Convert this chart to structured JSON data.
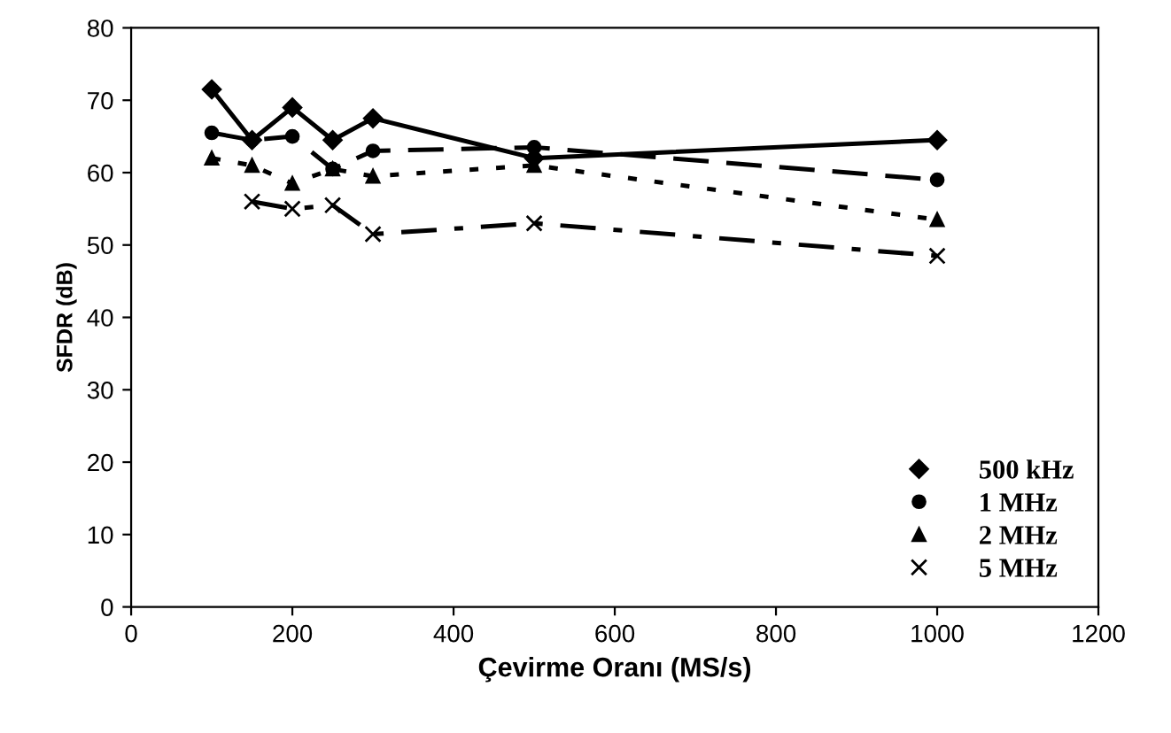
{
  "chart_data": {
    "type": "line",
    "xlabel": "Çevirme Oranı (MS/s)",
    "ylabel": "SFDR (dB)",
    "xlim": [
      0,
      1200
    ],
    "xticks": [
      0,
      200,
      400,
      600,
      800,
      1000,
      1200
    ],
    "ylim": [
      0,
      80
    ],
    "yticks": [
      0,
      10,
      20,
      30,
      40,
      50,
      60,
      70,
      80
    ],
    "grid": false,
    "legend": "bottom right",
    "series": [
      {
        "name": "500 kHz",
        "color": "#000000",
        "marker": "diamond",
        "line_style": "solid",
        "x": [
          100,
          150,
          200,
          250,
          300,
          500,
          1000
        ],
        "values": [
          71.5,
          64.5,
          69,
          64.5,
          67.5,
          62,
          64.5
        ]
      },
      {
        "name": "1 MHz",
        "color": "#000000",
        "marker": "circle",
        "line_style": "dashed",
        "x": [
          100,
          150,
          200,
          250,
          300,
          500,
          1000
        ],
        "values": [
          65.5,
          64.5,
          65,
          60.5,
          63,
          63.5,
          59
        ]
      },
      {
        "name": "2 MHz",
        "color": "#000000",
        "marker": "triangle",
        "line_style": "dotted",
        "x": [
          100,
          150,
          200,
          250,
          300,
          500,
          1000
        ],
        "values": [
          62,
          61,
          58.5,
          60.5,
          59.5,
          61,
          53.5
        ]
      },
      {
        "name": "5 MHz",
        "color": "#000000",
        "marker": "cross",
        "line_style": "dashdot",
        "x": [
          150,
          200,
          250,
          300,
          500,
          1000
        ],
        "values": [
          56,
          55,
          55.5,
          51.5,
          53,
          48.5
        ]
      }
    ]
  }
}
